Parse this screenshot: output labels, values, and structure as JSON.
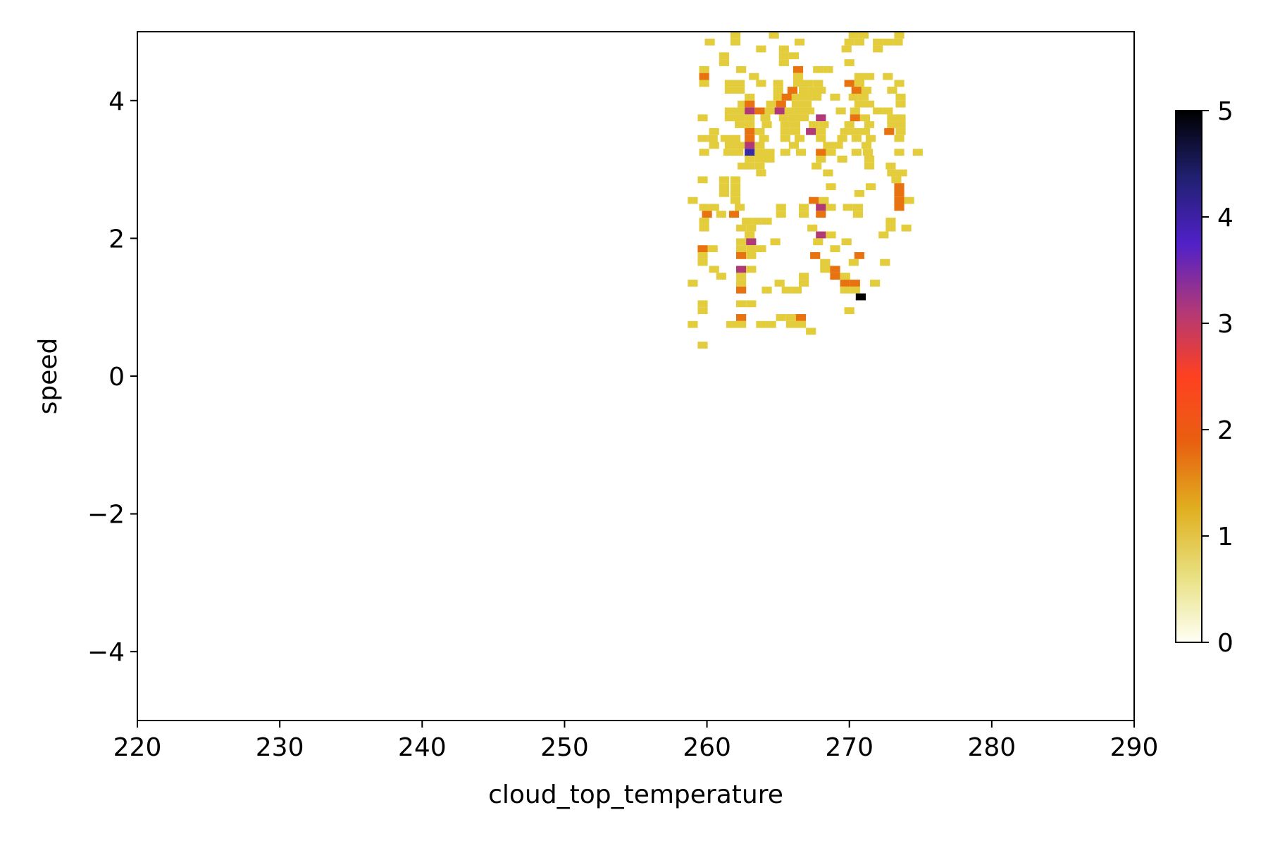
{
  "chart_data": {
    "type": "heatmap",
    "title": "",
    "xlabel": "cloud_top_temperature",
    "ylabel": "speed",
    "xlim": [
      220,
      290
    ],
    "ylim": [
      -5,
      5
    ],
    "xticks": [
      "220",
      "230",
      "240",
      "250",
      "260",
      "270",
      "280",
      "290"
    ],
    "yticks": [
      "−4",
      "−2",
      "0",
      "2",
      "4"
    ],
    "colorbar": {
      "range": [
        0,
        5
      ],
      "ticks": [
        "0",
        "1",
        "2",
        "3",
        "4",
        "5"
      ],
      "colors": [
        "#fffff5",
        "#e8e080",
        "#e0b020",
        "#e86010",
        "#ff4020",
        "#b03878",
        "#5020c8",
        "#202070",
        "#000000"
      ]
    },
    "bin_width_x": 0.7,
    "bin_width_y": 0.1,
    "cells": [
      [
        262.0,
        4.95,
        1
      ],
      [
        264.7,
        4.95,
        1
      ],
      [
        270.3,
        4.95,
        1
      ],
      [
        271.0,
        4.95,
        1
      ],
      [
        273.5,
        4.95,
        1
      ],
      [
        260.2,
        4.85,
        1
      ],
      [
        262.0,
        4.85,
        1
      ],
      [
        266.5,
        4.85,
        1
      ],
      [
        270.0,
        4.85,
        1
      ],
      [
        270.7,
        4.85,
        1
      ],
      [
        272.0,
        4.85,
        1
      ],
      [
        272.7,
        4.85,
        1
      ],
      [
        273.4,
        4.85,
        1
      ],
      [
        263.8,
        4.75,
        1
      ],
      [
        265.4,
        4.75,
        1
      ],
      [
        269.8,
        4.75,
        1
      ],
      [
        272.0,
        4.75,
        1
      ],
      [
        261.2,
        4.65,
        1
      ],
      [
        265.4,
        4.65,
        1
      ],
      [
        266.1,
        4.65,
        1
      ],
      [
        261.2,
        4.55,
        1
      ],
      [
        265.4,
        4.55,
        1
      ],
      [
        270.0,
        4.55,
        1
      ],
      [
        259.8,
        4.45,
        1
      ],
      [
        262.4,
        4.45,
        1
      ],
      [
        266.4,
        4.45,
        2
      ],
      [
        267.8,
        4.45,
        1
      ],
      [
        268.5,
        4.45,
        1
      ],
      [
        259.8,
        4.35,
        2
      ],
      [
        263.3,
        4.35,
        1
      ],
      [
        266.4,
        4.35,
        1
      ],
      [
        270.7,
        4.35,
        1
      ],
      [
        271.4,
        4.35,
        1
      ],
      [
        272.7,
        4.35,
        1
      ],
      [
        259.8,
        4.25,
        1
      ],
      [
        261.6,
        4.25,
        1
      ],
      [
        262.3,
        4.25,
        1
      ],
      [
        263.8,
        4.25,
        1
      ],
      [
        265.0,
        4.25,
        1
      ],
      [
        266.4,
        4.25,
        1
      ],
      [
        267.1,
        4.25,
        1
      ],
      [
        267.8,
        4.25,
        1
      ],
      [
        270.0,
        4.25,
        2
      ],
      [
        270.7,
        4.25,
        1
      ],
      [
        273.5,
        4.25,
        1
      ],
      [
        261.6,
        4.15,
        1
      ],
      [
        262.3,
        4.15,
        1
      ],
      [
        265.0,
        4.15,
        1
      ],
      [
        266.0,
        4.15,
        2
      ],
      [
        266.8,
        4.15,
        1
      ],
      [
        267.5,
        4.15,
        1
      ],
      [
        268.0,
        4.15,
        1
      ],
      [
        270.5,
        4.15,
        2
      ],
      [
        271.2,
        4.15,
        1
      ],
      [
        273.0,
        4.15,
        1
      ],
      [
        263.0,
        4.05,
        1
      ],
      [
        265.0,
        4.05,
        1
      ],
      [
        265.6,
        4.05,
        2
      ],
      [
        266.3,
        4.05,
        1
      ],
      [
        267.0,
        4.05,
        1
      ],
      [
        267.7,
        4.05,
        1
      ],
      [
        269.0,
        4.05,
        1
      ],
      [
        270.3,
        4.05,
        1
      ],
      [
        271.0,
        4.05,
        1
      ],
      [
        273.6,
        4.05,
        1
      ],
      [
        262.5,
        3.95,
        1
      ],
      [
        263.0,
        3.95,
        2
      ],
      [
        264.5,
        3.95,
        1
      ],
      [
        265.2,
        3.95,
        2
      ],
      [
        266.3,
        3.95,
        1
      ],
      [
        267.0,
        3.95,
        1
      ],
      [
        270.7,
        3.95,
        1
      ],
      [
        271.4,
        3.95,
        1
      ],
      [
        273.6,
        3.95,
        1
      ],
      [
        261.6,
        3.85,
        1
      ],
      [
        262.3,
        3.85,
        1
      ],
      [
        263.0,
        3.85,
        3
      ],
      [
        263.7,
        3.85,
        2
      ],
      [
        264.4,
        3.85,
        1
      ],
      [
        265.1,
        3.85,
        3
      ],
      [
        265.8,
        3.85,
        1
      ],
      [
        266.5,
        3.85,
        1
      ],
      [
        267.2,
        3.85,
        1
      ],
      [
        269.4,
        3.85,
        1
      ],
      [
        270.4,
        3.85,
        1
      ],
      [
        272.0,
        3.85,
        1
      ],
      [
        272.7,
        3.85,
        1
      ],
      [
        259.7,
        3.75,
        1
      ],
      [
        261.6,
        3.75,
        1
      ],
      [
        262.3,
        3.75,
        1
      ],
      [
        263.0,
        3.75,
        1
      ],
      [
        264.1,
        3.75,
        1
      ],
      [
        265.4,
        3.75,
        1
      ],
      [
        266.1,
        3.75,
        1
      ],
      [
        266.8,
        3.75,
        1
      ],
      [
        268.0,
        3.75,
        3
      ],
      [
        270.4,
        3.75,
        2
      ],
      [
        271.1,
        3.75,
        1
      ],
      [
        273.0,
        3.75,
        1
      ],
      [
        273.6,
        3.75,
        1
      ],
      [
        262.3,
        3.65,
        1
      ],
      [
        263.0,
        3.65,
        1
      ],
      [
        264.2,
        3.65,
        1
      ],
      [
        265.5,
        3.65,
        1
      ],
      [
        266.2,
        3.65,
        1
      ],
      [
        267.5,
        3.65,
        1
      ],
      [
        268.2,
        3.65,
        1
      ],
      [
        270.0,
        3.65,
        1
      ],
      [
        271.4,
        3.65,
        1
      ],
      [
        273.0,
        3.65,
        1
      ],
      [
        273.6,
        3.65,
        1
      ],
      [
        260.5,
        3.55,
        1
      ],
      [
        263.0,
        3.55,
        2
      ],
      [
        263.7,
        3.55,
        1
      ],
      [
        265.5,
        3.55,
        1
      ],
      [
        266.2,
        3.55,
        1
      ],
      [
        267.3,
        3.55,
        3
      ],
      [
        268.0,
        3.55,
        1
      ],
      [
        269.7,
        3.55,
        1
      ],
      [
        270.4,
        3.55,
        1
      ],
      [
        271.1,
        3.55,
        1
      ],
      [
        272.8,
        3.55,
        2
      ],
      [
        273.6,
        3.55,
        1
      ],
      [
        259.7,
        3.45,
        1
      ],
      [
        260.4,
        3.45,
        1
      ],
      [
        261.3,
        3.45,
        1
      ],
      [
        262.0,
        3.45,
        1
      ],
      [
        263.0,
        3.45,
        2
      ],
      [
        264.0,
        3.45,
        1
      ],
      [
        265.5,
        3.45,
        1
      ],
      [
        266.5,
        3.45,
        1
      ],
      [
        268.0,
        3.45,
        1
      ],
      [
        269.5,
        3.45,
        1
      ],
      [
        270.5,
        3.45,
        1
      ],
      [
        271.5,
        3.45,
        1
      ],
      [
        273.5,
        3.45,
        1
      ],
      [
        260.5,
        3.35,
        1
      ],
      [
        261.6,
        3.35,
        1
      ],
      [
        262.3,
        3.35,
        1
      ],
      [
        263.0,
        3.35,
        3
      ],
      [
        263.7,
        3.35,
        1
      ],
      [
        266.1,
        3.35,
        1
      ],
      [
        268.5,
        3.35,
        1
      ],
      [
        269.2,
        3.35,
        1
      ],
      [
        271.2,
        3.35,
        1
      ],
      [
        259.8,
        3.25,
        1
      ],
      [
        261.5,
        3.25,
        1
      ],
      [
        262.2,
        3.25,
        1
      ],
      [
        263.0,
        3.25,
        4
      ],
      [
        263.7,
        3.25,
        1
      ],
      [
        264.4,
        3.25,
        1
      ],
      [
        265.5,
        3.25,
        1
      ],
      [
        266.6,
        3.25,
        1
      ],
      [
        268.0,
        3.25,
        2
      ],
      [
        268.7,
        3.25,
        1
      ],
      [
        270.5,
        3.25,
        1
      ],
      [
        271.3,
        3.25,
        1
      ],
      [
        273.5,
        3.25,
        1
      ],
      [
        274.8,
        3.25,
        1
      ],
      [
        263.0,
        3.15,
        1
      ],
      [
        263.7,
        3.15,
        1
      ],
      [
        264.4,
        3.15,
        1
      ],
      [
        268.0,
        3.15,
        1
      ],
      [
        269.5,
        3.15,
        1
      ],
      [
        271.4,
        3.15,
        1
      ],
      [
        262.5,
        3.05,
        1
      ],
      [
        263.0,
        3.05,
        1
      ],
      [
        263.7,
        3.05,
        1
      ],
      [
        267.7,
        3.05,
        1
      ],
      [
        271.4,
        3.05,
        1
      ],
      [
        272.9,
        3.05,
        1
      ],
      [
        263.8,
        2.95,
        1
      ],
      [
        268.5,
        2.95,
        1
      ],
      [
        273.0,
        2.95,
        1
      ],
      [
        273.7,
        2.95,
        1
      ],
      [
        259.7,
        2.85,
        1
      ],
      [
        261.2,
        2.85,
        1
      ],
      [
        262.0,
        2.85,
        1
      ],
      [
        273.3,
        2.85,
        1
      ],
      [
        261.2,
        2.75,
        1
      ],
      [
        262.0,
        2.75,
        1
      ],
      [
        268.7,
        2.75,
        1
      ],
      [
        271.5,
        2.75,
        1
      ],
      [
        273.5,
        2.75,
        2
      ],
      [
        261.2,
        2.65,
        1
      ],
      [
        262.0,
        2.65,
        1
      ],
      [
        270.7,
        2.65,
        1
      ],
      [
        273.5,
        2.65,
        2
      ],
      [
        259.0,
        2.55,
        1
      ],
      [
        262.0,
        2.55,
        1
      ],
      [
        267.5,
        2.55,
        2
      ],
      [
        268.2,
        2.55,
        1
      ],
      [
        273.5,
        2.55,
        2
      ],
      [
        274.2,
        2.55,
        1
      ],
      [
        259.8,
        2.45,
        1
      ],
      [
        260.5,
        2.45,
        1
      ],
      [
        262.3,
        2.45,
        1
      ],
      [
        265.2,
        2.45,
        1
      ],
      [
        266.8,
        2.45,
        1
      ],
      [
        268.0,
        2.45,
        3
      ],
      [
        268.7,
        2.45,
        1
      ],
      [
        269.9,
        2.45,
        1
      ],
      [
        270.6,
        2.45,
        1
      ],
      [
        273.5,
        2.45,
        2
      ],
      [
        260.0,
        2.35,
        2
      ],
      [
        261.0,
        2.35,
        1
      ],
      [
        261.9,
        2.35,
        2
      ],
      [
        265.2,
        2.35,
        1
      ],
      [
        266.8,
        2.35,
        1
      ],
      [
        268.0,
        2.35,
        2
      ],
      [
        270.6,
        2.35,
        1
      ],
      [
        259.8,
        2.25,
        1
      ],
      [
        262.8,
        2.25,
        1
      ],
      [
        263.5,
        2.25,
        1
      ],
      [
        264.2,
        2.25,
        1
      ],
      [
        272.9,
        2.25,
        1
      ],
      [
        259.8,
        2.15,
        1
      ],
      [
        262.4,
        2.15,
        1
      ],
      [
        263.1,
        2.15,
        1
      ],
      [
        267.4,
        2.15,
        1
      ],
      [
        272.9,
        2.15,
        1
      ],
      [
        274.0,
        2.15,
        1
      ],
      [
        263.0,
        2.05,
        1
      ],
      [
        268.0,
        2.05,
        3
      ],
      [
        268.7,
        2.05,
        1
      ],
      [
        272.4,
        2.05,
        1
      ],
      [
        262.4,
        1.95,
        1
      ],
      [
        263.1,
        1.95,
        3
      ],
      [
        264.8,
        1.95,
        1
      ],
      [
        267.8,
        1.95,
        1
      ],
      [
        269.8,
        1.95,
        1
      ],
      [
        259.7,
        1.85,
        2
      ],
      [
        260.4,
        1.85,
        1
      ],
      [
        262.4,
        1.85,
        1
      ],
      [
        263.1,
        1.85,
        1
      ],
      [
        263.8,
        1.85,
        1
      ],
      [
        269.0,
        1.85,
        1
      ],
      [
        259.7,
        1.75,
        1
      ],
      [
        262.4,
        1.75,
        2
      ],
      [
        263.1,
        1.75,
        1
      ],
      [
        267.6,
        1.75,
        2
      ],
      [
        270.7,
        1.75,
        2
      ],
      [
        259.7,
        1.65,
        1
      ],
      [
        268.3,
        1.65,
        1
      ],
      [
        270.3,
        1.65,
        1
      ],
      [
        272.5,
        1.65,
        1
      ],
      [
        260.5,
        1.55,
        1
      ],
      [
        262.4,
        1.55,
        3
      ],
      [
        263.1,
        1.55,
        1
      ],
      [
        268.3,
        1.55,
        1
      ],
      [
        269.0,
        1.55,
        2
      ],
      [
        261.0,
        1.45,
        1
      ],
      [
        262.4,
        1.45,
        1
      ],
      [
        266.8,
        1.45,
        1
      ],
      [
        269.0,
        1.45,
        2
      ],
      [
        269.7,
        1.45,
        1
      ],
      [
        259.0,
        1.35,
        1
      ],
      [
        262.4,
        1.35,
        1
      ],
      [
        265.1,
        1.35,
        1
      ],
      [
        266.8,
        1.35,
        1
      ],
      [
        269.7,
        1.35,
        2
      ],
      [
        270.4,
        1.35,
        2
      ],
      [
        271.8,
        1.35,
        1
      ],
      [
        262.4,
        1.25,
        2
      ],
      [
        264.2,
        1.25,
        1
      ],
      [
        265.6,
        1.25,
        1
      ],
      [
        266.3,
        1.25,
        1
      ],
      [
        269.7,
        1.25,
        1
      ],
      [
        270.4,
        1.25,
        1
      ],
      [
        270.8,
        1.15,
        5
      ],
      [
        259.7,
        1.05,
        1
      ],
      [
        262.4,
        1.05,
        1
      ],
      [
        263.1,
        1.05,
        1
      ],
      [
        259.7,
        0.95,
        1
      ],
      [
        270.0,
        0.95,
        1
      ],
      [
        262.4,
        0.85,
        2
      ],
      [
        265.2,
        0.85,
        1
      ],
      [
        265.9,
        0.85,
        1
      ],
      [
        266.6,
        0.85,
        2
      ],
      [
        259.0,
        0.75,
        1
      ],
      [
        261.7,
        0.75,
        1
      ],
      [
        262.4,
        0.75,
        1
      ],
      [
        263.8,
        0.75,
        1
      ],
      [
        264.5,
        0.75,
        1
      ],
      [
        265.9,
        0.75,
        1
      ],
      [
        266.6,
        0.75,
        1
      ],
      [
        267.3,
        0.65,
        1
      ],
      [
        259.7,
        0.45,
        1
      ]
    ]
  }
}
